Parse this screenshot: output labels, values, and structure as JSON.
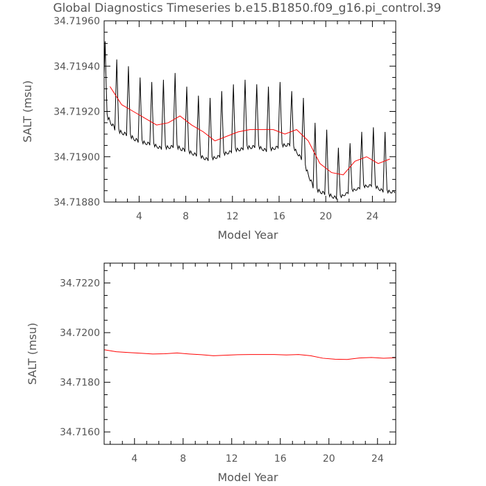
{
  "title": "Global Diagnostics Timeseries b.e15.B1850.f09_g16.pi_control.39",
  "colors": {
    "monthly": "#000000",
    "annual": "#ff0000",
    "text": "#555555"
  },
  "chart_data": [
    {
      "type": "line",
      "xlabel": "Model Year",
      "ylabel": "SALT (msu)",
      "xlim": [
        1,
        26
      ],
      "ylim": [
        34.7188,
        34.7196
      ],
      "xticks": [
        4,
        8,
        12,
        16,
        20,
        24
      ],
      "xtick_labels": [
        "4",
        "8",
        "12",
        "16",
        "20",
        "24"
      ],
      "yticks": [
        34.7188,
        34.719,
        34.7192,
        34.7194,
        34.7196
      ],
      "ytick_labels": [
        "34.71880",
        "34.71900",
        "34.71920",
        "34.71940",
        "34.71960"
      ],
      "grid": false,
      "series": [
        {
          "style": "monthly",
          "color": "#000000",
          "annual_peaks": [
            34.71951,
            34.71943,
            34.7194,
            34.71935,
            34.71933,
            34.71934,
            34.71937,
            34.71931,
            34.71927,
            34.71926,
            34.71929,
            34.71932,
            34.71934,
            34.71932,
            34.71931,
            34.71933,
            34.71929,
            34.71926,
            34.71915,
            34.71912,
            34.71904,
            34.71906,
            34.71911,
            34.71913,
            34.71911
          ],
          "annual_troughs": [
            34.71919,
            34.71911,
            34.71909,
            34.71906,
            34.71905,
            34.71903,
            34.71904,
            34.71902,
            34.719,
            34.71898,
            34.719,
            34.71902,
            34.71903,
            34.71904,
            34.71902,
            34.71904,
            34.71905,
            34.71898,
            34.71885,
            34.71883,
            34.71881,
            34.71884,
            34.71886,
            34.71887,
            34.71884
          ]
        },
        {
          "style": "annual",
          "color": "#ff0000",
          "x": [
            1.5,
            2.5,
            3.5,
            4.5,
            5.5,
            6.5,
            7.5,
            8.5,
            9.5,
            10.5,
            11.5,
            12.5,
            13.5,
            14.5,
            15.5,
            16.5,
            17.5,
            18.5,
            19.5,
            20.5,
            21.5,
            22.5,
            23.5,
            24.5,
            25.5
          ],
          "y": [
            34.71931,
            34.71923,
            34.7192,
            34.71917,
            34.71914,
            34.71915,
            34.71918,
            34.71914,
            34.71911,
            34.71907,
            34.71909,
            34.71911,
            34.71912,
            34.71912,
            34.71912,
            34.7191,
            34.71912,
            34.71907,
            34.71897,
            34.71893,
            34.71892,
            34.71898,
            34.719,
            34.71897,
            34.71899
          ]
        }
      ]
    },
    {
      "type": "line",
      "xlabel": "Model Year",
      "ylabel": "SALT (msu)",
      "xlim": [
        1.5,
        25.5
      ],
      "ylim": [
        34.7155,
        34.7228
      ],
      "xticks": [
        4,
        8,
        12,
        16,
        20,
        24
      ],
      "xtick_labels": [
        "4",
        "8",
        "12",
        "16",
        "20",
        "24"
      ],
      "yticks": [
        34.716,
        34.718,
        34.72,
        34.722
      ],
      "ytick_labels": [
        "34.7160",
        "34.7180",
        "34.7200",
        "34.7220"
      ],
      "grid": false,
      "series": [
        {
          "style": "annual",
          "color": "#ff0000",
          "x": [
            1.5,
            2.5,
            3.5,
            4.5,
            5.5,
            6.5,
            7.5,
            8.5,
            9.5,
            10.5,
            11.5,
            12.5,
            13.5,
            14.5,
            15.5,
            16.5,
            17.5,
            18.5,
            19.5,
            20.5,
            21.5,
            22.5,
            23.5,
            24.5,
            25.5
          ],
          "y": [
            34.71931,
            34.71923,
            34.7192,
            34.71917,
            34.71914,
            34.71915,
            34.71918,
            34.71914,
            34.71911,
            34.71907,
            34.71909,
            34.71911,
            34.71912,
            34.71912,
            34.71912,
            34.7191,
            34.71912,
            34.71907,
            34.71897,
            34.71893,
            34.71892,
            34.71898,
            34.719,
            34.71897,
            34.71899
          ]
        }
      ]
    }
  ]
}
